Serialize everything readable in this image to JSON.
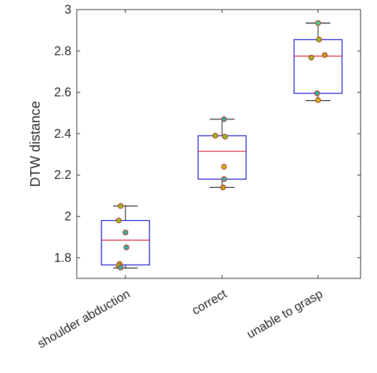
{
  "chart_data": {
    "type": "box",
    "title": "",
    "xlabel": "",
    "ylabel": "DTW distance",
    "ylim": [
      1.7,
      3.0
    ],
    "yticks": [
      1.8,
      2.0,
      2.2,
      2.4,
      2.6,
      2.8,
      3.0
    ],
    "ytick_labels": [
      "1.8",
      "2",
      "2.2",
      "2.4",
      "2.6",
      "2.8",
      "3"
    ],
    "grid": false,
    "categories": [
      "shoulder abduction",
      "correct",
      "unable to grasp"
    ],
    "boxes": [
      {
        "min": 1.75,
        "q1": 1.765,
        "median": 1.885,
        "q3": 1.98,
        "max": 2.05
      },
      {
        "min": 2.14,
        "q1": 2.18,
        "median": 2.315,
        "q3": 2.39,
        "max": 2.47
      },
      {
        "min": 2.56,
        "q1": 2.595,
        "median": 2.775,
        "q3": 2.855,
        "max": 2.935
      }
    ],
    "points": [
      [
        {
          "dx": -0.05,
          "y": 2.05,
          "color": "#8fc21a"
        },
        {
          "dx": -0.07,
          "y": 1.98,
          "color": "#8fc21a"
        },
        {
          "dx": 0.0,
          "y": 1.922,
          "color": "#2bb6a3"
        },
        {
          "dx": 0.01,
          "y": 1.85,
          "color": "#2bb6a3"
        },
        {
          "dx": -0.06,
          "y": 1.77,
          "color": "#8fc21a"
        },
        {
          "dx": -0.07,
          "y": 1.762,
          "color": "#8fc21a"
        },
        {
          "dx": -0.05,
          "y": 1.752,
          "color": "#2bb6a3"
        }
      ],
      [
        {
          "dx": 0.02,
          "y": 2.47,
          "color": "#2bb6a3"
        },
        {
          "dx": -0.07,
          "y": 2.39,
          "color": "#8fc21a"
        },
        {
          "dx": 0.03,
          "y": 2.385,
          "color": "#8fc21a"
        },
        {
          "dx": 0.02,
          "y": 2.24,
          "color": "#c2b81a"
        },
        {
          "dx": 0.02,
          "y": 2.18,
          "color": "#2bb6a3"
        },
        {
          "dx": 0.01,
          "y": 2.14,
          "color": "#b8a020"
        }
      ],
      [
        {
          "dx": 0.0,
          "y": 2.935,
          "color": "#3dd68a"
        },
        {
          "dx": 0.01,
          "y": 2.855,
          "color": "#8fc21a"
        },
        {
          "dx": 0.07,
          "y": 2.78,
          "color": "#b8a020"
        },
        {
          "dx": -0.07,
          "y": 2.768,
          "color": "#8fc21a"
        },
        {
          "dx": -0.01,
          "y": 2.595,
          "color": "#2bb6a3"
        },
        {
          "dx": 0.0,
          "y": 2.562,
          "color": "#c2b81a"
        }
      ]
    ],
    "colors": {
      "box": "#0000cc",
      "median": "#e0142a",
      "whisker": "#000000",
      "point_edge": "#c0392b",
      "axis": "#262626"
    }
  }
}
